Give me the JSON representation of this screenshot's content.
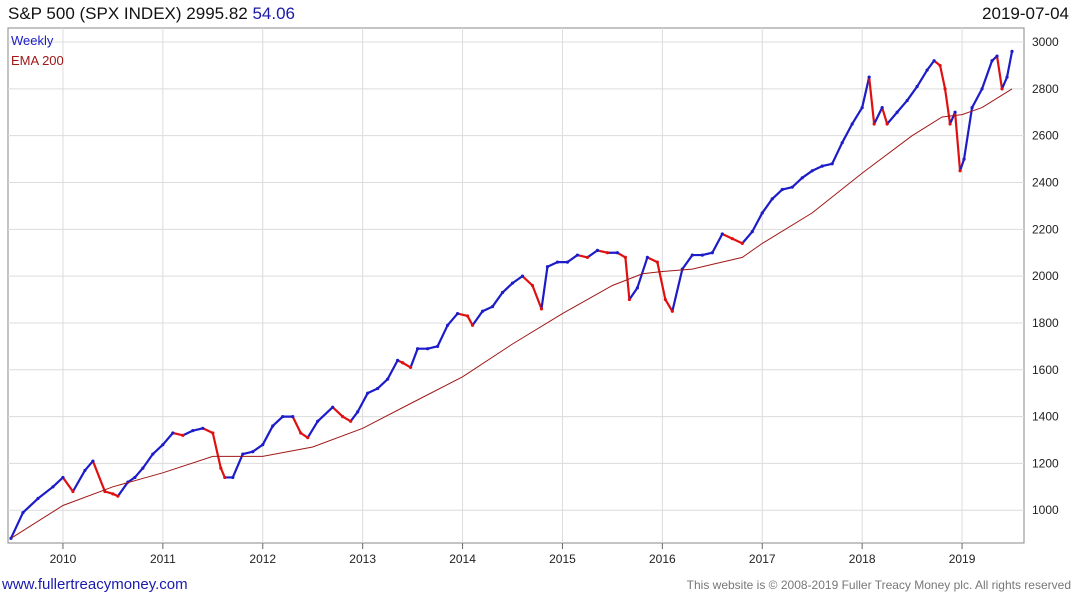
{
  "header": {
    "title": "S&P 500 (SPX INDEX)",
    "price": "2995.82",
    "change": "54.06",
    "date": "2019-07-04"
  },
  "footer": {
    "website": "www.fullertreacymoney.com",
    "copyright": "This website is © 2008-2019 Fuller Treacy Money plc. All rights reserved"
  },
  "colors": {
    "up": "#1c1cc8",
    "down": "#e01010",
    "ema": "#a01818",
    "grid": "#dcdcdc"
  },
  "chart_data": {
    "type": "line",
    "ylim": [
      860,
      3060
    ],
    "xlim": [
      2009.45,
      2019.62
    ],
    "yticks": [
      1000,
      1200,
      1400,
      1600,
      1800,
      2000,
      2200,
      2400,
      2600,
      2800,
      3000
    ],
    "xticks": [
      2010,
      2011,
      2012,
      2013,
      2014,
      2015,
      2016,
      2017,
      2018,
      2019
    ],
    "grid": true,
    "legend_placement": "top-left",
    "series": [
      {
        "name": "Weekly",
        "style": "up-down bars",
        "x": [
          2009.48,
          2009.6,
          2009.75,
          2009.9,
          2010.0,
          2010.1,
          2010.22,
          2010.3,
          2010.42,
          2010.5,
          2010.55,
          2010.65,
          2010.72,
          2010.8,
          2010.9,
          2011.0,
          2011.1,
          2011.2,
          2011.3,
          2011.4,
          2011.5,
          2011.58,
          2011.62,
          2011.7,
          2011.8,
          2011.9,
          2012.0,
          2012.1,
          2012.2,
          2012.3,
          2012.38,
          2012.45,
          2012.55,
          2012.7,
          2012.8,
          2012.88,
          2012.95,
          2013.05,
          2013.15,
          2013.25,
          2013.35,
          2013.4,
          2013.48,
          2013.55,
          2013.65,
          2013.75,
          2013.85,
          2013.95,
          2014.05,
          2014.1,
          2014.2,
          2014.3,
          2014.4,
          2014.5,
          2014.6,
          2014.7,
          2014.79,
          2014.85,
          2014.95,
          2015.05,
          2015.15,
          2015.25,
          2015.35,
          2015.45,
          2015.55,
          2015.63,
          2015.67,
          2015.75,
          2015.85,
          2015.95,
          2016.03,
          2016.1,
          2016.2,
          2016.3,
          2016.4,
          2016.5,
          2016.6,
          2016.7,
          2016.8,
          2016.9,
          2017.0,
          2017.1,
          2017.2,
          2017.3,
          2017.4,
          2017.5,
          2017.6,
          2017.7,
          2017.8,
          2017.9,
          2018.0,
          2018.07,
          2018.12,
          2018.2,
          2018.25,
          2018.35,
          2018.45,
          2018.55,
          2018.65,
          2018.72,
          2018.78,
          2018.83,
          2018.88,
          2018.93,
          2018.98,
          2019.02,
          2019.1,
          2019.2,
          2019.3,
          2019.35,
          2019.4,
          2019.45,
          2019.5
        ],
        "y": [
          880,
          990,
          1050,
          1100,
          1140,
          1080,
          1170,
          1210,
          1080,
          1070,
          1060,
          1120,
          1140,
          1180,
          1240,
          1280,
          1330,
          1320,
          1340,
          1350,
          1330,
          1180,
          1140,
          1140,
          1240,
          1250,
          1280,
          1360,
          1400,
          1400,
          1330,
          1310,
          1380,
          1440,
          1400,
          1380,
          1420,
          1500,
          1520,
          1560,
          1640,
          1630,
          1610,
          1690,
          1690,
          1700,
          1790,
          1840,
          1830,
          1790,
          1850,
          1870,
          1930,
          1970,
          2000,
          1960,
          1860,
          2040,
          2060,
          2060,
          2090,
          2080,
          2110,
          2100,
          2100,
          2080,
          1900,
          1950,
          2080,
          2060,
          1900,
          1850,
          2030,
          2090,
          2090,
          2100,
          2180,
          2160,
          2140,
          2190,
          2270,
          2330,
          2370,
          2380,
          2420,
          2450,
          2470,
          2480,
          2570,
          2650,
          2720,
          2850,
          2650,
          2720,
          2650,
          2700,
          2750,
          2810,
          2880,
          2920,
          2900,
          2800,
          2650,
          2700,
          2450,
          2500,
          2720,
          2800,
          2920,
          2940,
          2800,
          2850,
          2960
        ]
      },
      {
        "name": "EMA 200",
        "style": "line",
        "x": [
          2009.48,
          2010.0,
          2010.5,
          2011.0,
          2011.5,
          2012.0,
          2012.5,
          2013.0,
          2013.5,
          2014.0,
          2014.5,
          2015.0,
          2015.5,
          2015.8,
          2016.0,
          2016.3,
          2016.5,
          2016.8,
          2017.0,
          2017.5,
          2018.0,
          2018.5,
          2018.8,
          2019.0,
          2019.2,
          2019.5
        ],
        "y": [
          880,
          1020,
          1100,
          1160,
          1230,
          1230,
          1270,
          1350,
          1460,
          1570,
          1710,
          1840,
          1960,
          2010,
          2020,
          2030,
          2050,
          2080,
          2140,
          2270,
          2440,
          2600,
          2680,
          2690,
          2720,
          2800
        ]
      }
    ]
  }
}
